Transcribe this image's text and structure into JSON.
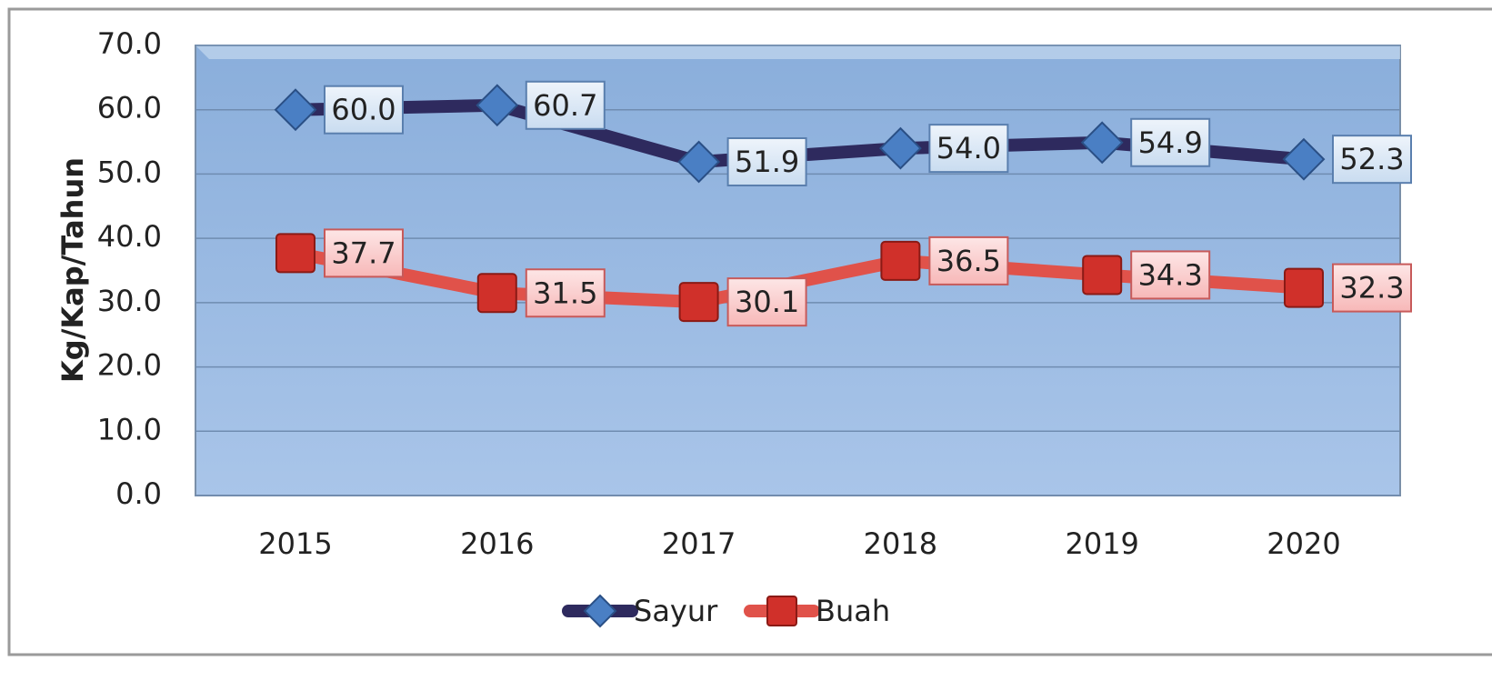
{
  "chart_data": {
    "type": "line",
    "y_label": "Kg/Kap/Tahun",
    "categories": [
      "2015",
      "2016",
      "2017",
      "2018",
      "2019",
      "2020"
    ],
    "series": [
      {
        "name": "Sayur",
        "color": "#2e2a5e",
        "marker_color": "#4a7fc4",
        "values": [
          60.0,
          60.7,
          51.9,
          54.0,
          54.9,
          52.3
        ],
        "value_labels": [
          "60.0",
          "60.7",
          "51.9",
          "54.0",
          "54.9",
          "52.3"
        ]
      },
      {
        "name": "Buah",
        "color": "#e0524a",
        "marker_color": "#d0302a",
        "values": [
          37.7,
          31.5,
          30.1,
          36.5,
          34.3,
          32.3
        ],
        "value_labels": [
          "37.7",
          "31.5",
          "30.1",
          "36.5",
          "34.3",
          "32.3"
        ]
      }
    ],
    "ylim": [
      0,
      70
    ],
    "yticks": [
      {
        "value": 0,
        "label": "0.0"
      },
      {
        "value": 10,
        "label": "10.0"
      },
      {
        "value": 20,
        "label": "20.0"
      },
      {
        "value": 30,
        "label": "30.0"
      },
      {
        "value": 40,
        "label": "40.0"
      },
      {
        "value": 50,
        "label": "50.0"
      },
      {
        "value": 60,
        "label": "60.0"
      },
      {
        "value": 70,
        "label": "70.0"
      }
    ],
    "grid": true,
    "legend": "bottom"
  }
}
